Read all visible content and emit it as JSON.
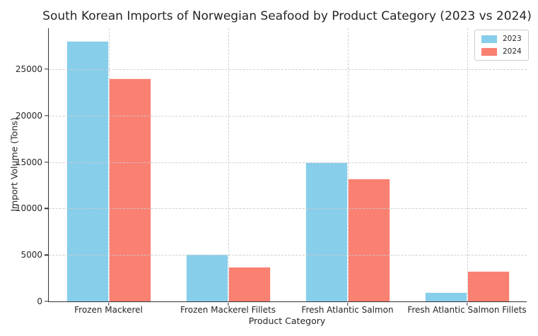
{
  "chart_data": {
    "type": "bar",
    "title": "South Korean Imports of Norwegian Seafood by Product Category (2023 vs 2024)",
    "xlabel": "Product Category",
    "ylabel": "Import Volume (Tons)",
    "categories": [
      "Frozen Mackerel",
      "Frozen Mackerel Fillets",
      "Fresh Atlantic Salmon",
      "Fresh Atlantic Salmon Fillets"
    ],
    "series": [
      {
        "name": "2023",
        "color": "#87CEEB",
        "values": [
          28000,
          5100,
          15000,
          1000
        ]
      },
      {
        "name": "2024",
        "color": "#FA8072",
        "values": [
          24000,
          3700,
          13200,
          3300
        ]
      }
    ],
    "ylim": [
      0,
      29400
    ],
    "yticks": [
      0,
      5000,
      10000,
      15000,
      20000,
      25000
    ],
    "grid": "both-dashed-on-top",
    "legend_position": "upper right",
    "style": {
      "gridline_color": "#cbcbcb",
      "spine_color": "#333333",
      "text_color": "#262626",
      "background": "#ffffff"
    }
  }
}
